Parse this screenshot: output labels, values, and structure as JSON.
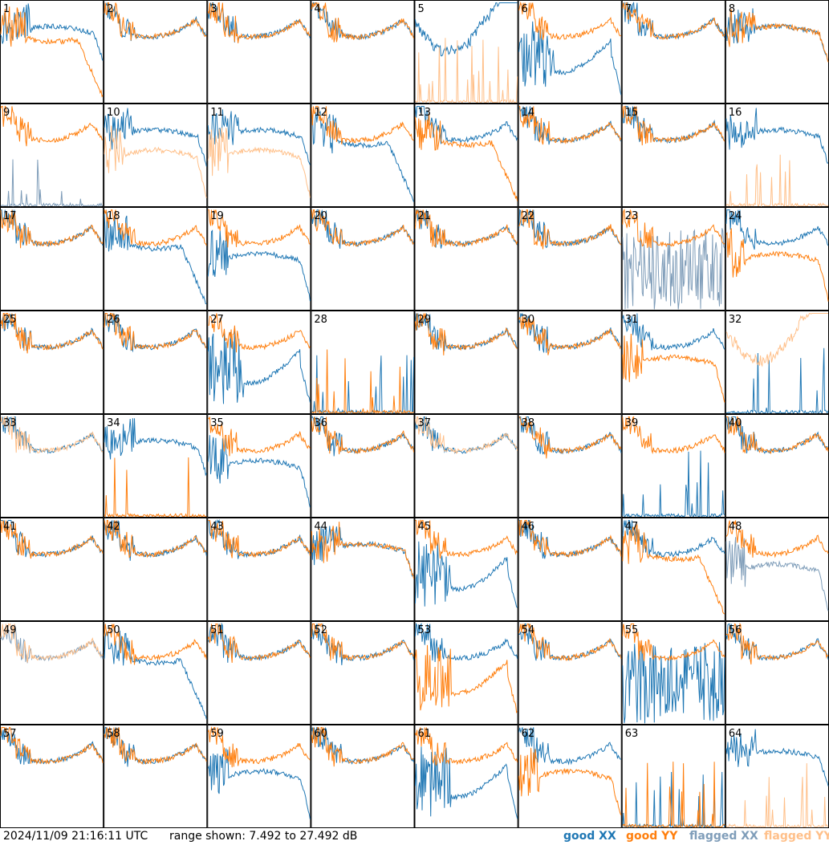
{
  "chart_data": {
    "type": "line",
    "title": "",
    "layout": "small-multiples 8x8",
    "panels": [
      {
        "label": "1",
        "xx": "good",
        "yy": "good",
        "xx_shape": "plateau",
        "yy_shape": "droop"
      },
      {
        "label": "2",
        "xx": "good",
        "yy": "good",
        "xx_shape": "bowl",
        "yy_shape": "bowl"
      },
      {
        "label": "3",
        "xx": "good",
        "yy": "good",
        "xx_shape": "bowl",
        "yy_shape": "bowl"
      },
      {
        "label": "4",
        "xx": "good",
        "yy": "good",
        "xx_shape": "bowl",
        "yy_shape": "bowl"
      },
      {
        "label": "5",
        "xx": "good",
        "yy": "flagged",
        "xx_shape": "wave",
        "yy_shape": "dead"
      },
      {
        "label": "6",
        "xx": "good",
        "yy": "good",
        "xx_shape": "dip",
        "yy_shape": "bowl"
      },
      {
        "label": "7",
        "xx": "good",
        "yy": "good",
        "xx_shape": "bowl",
        "yy_shape": "bowl"
      },
      {
        "label": "8",
        "xx": "good",
        "yy": "good",
        "xx_shape": "plateau",
        "yy_shape": "plateau"
      },
      {
        "label": "9",
        "xx": "flagged",
        "yy": "good",
        "xx_shape": "dead",
        "yy_shape": "bowl"
      },
      {
        "label": "10",
        "xx": "good",
        "yy": "flagged",
        "xx_shape": "plateau",
        "yy_shape": "low"
      },
      {
        "label": "11",
        "xx": "good",
        "yy": "flagged",
        "xx_shape": "plateau",
        "yy_shape": "low"
      },
      {
        "label": "12",
        "xx": "good",
        "yy": "good",
        "xx_shape": "droop",
        "yy_shape": "bowl"
      },
      {
        "label": "13",
        "xx": "good",
        "yy": "good",
        "xx_shape": "bowl",
        "yy_shape": "droop"
      },
      {
        "label": "14",
        "xx": "good",
        "yy": "good",
        "xx_shape": "bowl",
        "yy_shape": "bowl"
      },
      {
        "label": "15",
        "xx": "good",
        "yy": "good",
        "xx_shape": "bowl",
        "yy_shape": "bowl"
      },
      {
        "label": "16",
        "xx": "good",
        "yy": "flagged",
        "xx_shape": "plateau",
        "yy_shape": "dead"
      },
      {
        "label": "17",
        "xx": "good",
        "yy": "good",
        "xx_shape": "bowl",
        "yy_shape": "bowl"
      },
      {
        "label": "18",
        "xx": "good",
        "yy": "good",
        "xx_shape": "droop",
        "yy_shape": "bowl"
      },
      {
        "label": "19",
        "xx": "good",
        "yy": "good",
        "xx_shape": "low",
        "yy_shape": "bowl"
      },
      {
        "label": "20",
        "xx": "good",
        "yy": "good",
        "xx_shape": "bowl",
        "yy_shape": "bowl"
      },
      {
        "label": "21",
        "xx": "good",
        "yy": "good",
        "xx_shape": "bowl",
        "yy_shape": "bowl"
      },
      {
        "label": "22",
        "xx": "good",
        "yy": "good",
        "xx_shape": "bowl",
        "yy_shape": "bowl"
      },
      {
        "label": "23",
        "xx": "flagged",
        "yy": "good",
        "xx_shape": "noise",
        "yy_shape": "bowl"
      },
      {
        "label": "24",
        "xx": "good",
        "yy": "good",
        "xx_shape": "bowl",
        "yy_shape": "low"
      },
      {
        "label": "25",
        "xx": "good",
        "yy": "good",
        "xx_shape": "bowl",
        "yy_shape": "bowl"
      },
      {
        "label": "26",
        "xx": "good",
        "yy": "good",
        "xx_shape": "bowl",
        "yy_shape": "bowl"
      },
      {
        "label": "27",
        "xx": "good",
        "yy": "good",
        "xx_shape": "dip",
        "yy_shape": "bowl"
      },
      {
        "label": "28",
        "xx": "good",
        "yy": "good",
        "xx_shape": "dead",
        "yy_shape": "dead"
      },
      {
        "label": "29",
        "xx": "good",
        "yy": "good",
        "xx_shape": "bowl",
        "yy_shape": "bowl"
      },
      {
        "label": "30",
        "xx": "good",
        "yy": "good",
        "xx_shape": "bowl",
        "yy_shape": "bowl"
      },
      {
        "label": "31",
        "xx": "good",
        "yy": "good",
        "xx_shape": "bowl",
        "yy_shape": "low"
      },
      {
        "label": "32",
        "xx": "good",
        "yy": "flagged",
        "xx_shape": "dead",
        "yy_shape": "wave"
      },
      {
        "label": "33",
        "xx": "good",
        "yy": "flagged",
        "xx_shape": "bowl",
        "yy_shape": "bowl"
      },
      {
        "label": "34",
        "xx": "good",
        "yy": "good",
        "xx_shape": "plateau",
        "yy_shape": "dead"
      },
      {
        "label": "35",
        "xx": "good",
        "yy": "good",
        "xx_shape": "low",
        "yy_shape": "bowl"
      },
      {
        "label": "36",
        "xx": "good",
        "yy": "good",
        "xx_shape": "bowl",
        "yy_shape": "bowl"
      },
      {
        "label": "37",
        "xx": "good",
        "yy": "flagged",
        "xx_shape": "bowl",
        "yy_shape": "bowl"
      },
      {
        "label": "38",
        "xx": "good",
        "yy": "good",
        "xx_shape": "bowl",
        "yy_shape": "bowl"
      },
      {
        "label": "39",
        "xx": "good",
        "yy": "good",
        "xx_shape": "dead",
        "yy_shape": "bowl"
      },
      {
        "label": "40",
        "xx": "good",
        "yy": "good",
        "xx_shape": "bowl",
        "yy_shape": "bowl"
      },
      {
        "label": "41",
        "xx": "good",
        "yy": "good",
        "xx_shape": "bowl",
        "yy_shape": "bowl"
      },
      {
        "label": "42",
        "xx": "good",
        "yy": "good",
        "xx_shape": "bowl",
        "yy_shape": "bowl"
      },
      {
        "label": "43",
        "xx": "good",
        "yy": "good",
        "xx_shape": "bowl",
        "yy_shape": "bowl"
      },
      {
        "label": "44",
        "xx": "good",
        "yy": "good",
        "xx_shape": "plateau",
        "yy_shape": "plateau"
      },
      {
        "label": "45",
        "xx": "good",
        "yy": "good",
        "xx_shape": "dip",
        "yy_shape": "bowl"
      },
      {
        "label": "46",
        "xx": "good",
        "yy": "good",
        "xx_shape": "bowl",
        "yy_shape": "bowl"
      },
      {
        "label": "47",
        "xx": "good",
        "yy": "good",
        "xx_shape": "bowl",
        "yy_shape": "droop"
      },
      {
        "label": "48",
        "xx": "flagged",
        "yy": "good",
        "xx_shape": "low",
        "yy_shape": "bowl"
      },
      {
        "label": "49",
        "xx": "flagged",
        "yy": "flagged",
        "xx_shape": "bowl",
        "yy_shape": "bowl"
      },
      {
        "label": "50",
        "xx": "good",
        "yy": "good",
        "xx_shape": "droop",
        "yy_shape": "bowl"
      },
      {
        "label": "51",
        "xx": "good",
        "yy": "good",
        "xx_shape": "bowl",
        "yy_shape": "bowl"
      },
      {
        "label": "52",
        "xx": "good",
        "yy": "good",
        "xx_shape": "bowl",
        "yy_shape": "bowl"
      },
      {
        "label": "53",
        "xx": "good",
        "yy": "good",
        "xx_shape": "bowl",
        "yy_shape": "dip"
      },
      {
        "label": "54",
        "xx": "good",
        "yy": "good",
        "xx_shape": "bowl",
        "yy_shape": "bowl"
      },
      {
        "label": "55",
        "xx": "good",
        "yy": "good",
        "xx_shape": "noise",
        "yy_shape": "bowl"
      },
      {
        "label": "56",
        "xx": "good",
        "yy": "good",
        "xx_shape": "bowl",
        "yy_shape": "bowl"
      },
      {
        "label": "57",
        "xx": "good",
        "yy": "good",
        "xx_shape": "bowl",
        "yy_shape": "bowl"
      },
      {
        "label": "58",
        "xx": "good",
        "yy": "good",
        "xx_shape": "bowl",
        "yy_shape": "bowl"
      },
      {
        "label": "59",
        "xx": "good",
        "yy": "good",
        "xx_shape": "low",
        "yy_shape": "bowl"
      },
      {
        "label": "60",
        "xx": "good",
        "yy": "good",
        "xx_shape": "bowl",
        "yy_shape": "bowl"
      },
      {
        "label": "61",
        "xx": "good",
        "yy": "good",
        "xx_shape": "dip",
        "yy_shape": "bowl"
      },
      {
        "label": "62",
        "xx": "good",
        "yy": "good",
        "xx_shape": "bowl",
        "yy_shape": "low"
      },
      {
        "label": "63",
        "xx": "good",
        "yy": "good",
        "xx_shape": "dead",
        "yy_shape": "dead"
      },
      {
        "label": "64",
        "xx": "good",
        "yy": "flagged",
        "xx_shape": "plateau",
        "yy_shape": "dead"
      }
    ],
    "range_db": [
      7.492,
      27.492
    ],
    "legend": [
      "good XX",
      "good YY",
      "flagged XX",
      "flagged YY"
    ]
  },
  "footer": {
    "timestamp": "2024/11/09 21:16:11 UTC",
    "range_text": "range shown: 7.492 to 27.492 dB",
    "legend": {
      "good_xx": "good XX",
      "good_yy": "good YY",
      "flagged_xx": "flagged XX",
      "flagged_yy": "flagged YY"
    }
  },
  "colors": {
    "good_xx": "#1f77b4",
    "good_yy": "#ff7f0e",
    "flagged_xx": "#7f9db9",
    "flagged_yy": "#ffc08a"
  }
}
